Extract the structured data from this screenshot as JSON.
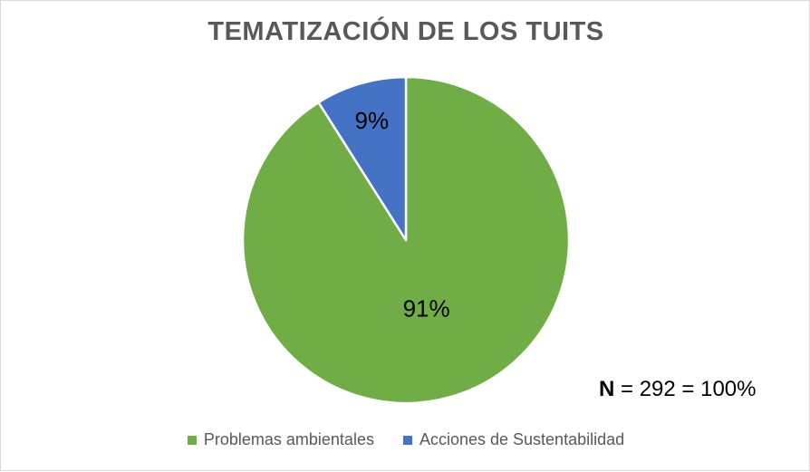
{
  "chart_data": {
    "type": "pie",
    "title": "TEMATIZACIÓN DE LOS TUITS",
    "categories": [
      "Problemas ambientales",
      "Acciones de Sustentabilidad"
    ],
    "values": [
      91,
      9
    ],
    "labels": [
      "91%",
      "9%"
    ],
    "colors": [
      "#70ad47",
      "#4472c4"
    ],
    "legend_position": "bottom",
    "annotation": {
      "letter": "N",
      "rest": " = 292 = 100%"
    }
  }
}
